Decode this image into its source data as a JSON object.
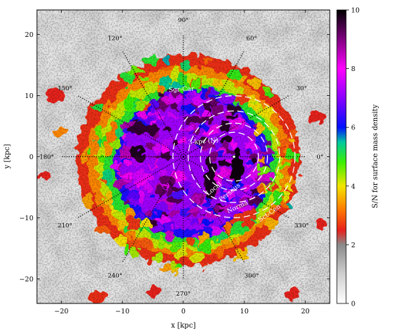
{
  "chart_data": {
    "type": "heatmap",
    "title": "",
    "xlabel": "x [kpc]",
    "ylabel": "y [kpc]",
    "xlim": [
      -24,
      24
    ],
    "ylim": [
      -24,
      24
    ],
    "xticks": [
      -20,
      -10,
      0,
      10,
      20
    ],
    "yticks": [
      -20,
      -10,
      0,
      10,
      20
    ],
    "colorbar": {
      "label": "S/N for surface mass density",
      "range": [
        0,
        10
      ],
      "ticks": [
        0,
        2,
        4,
        6,
        8,
        10
      ],
      "stops": [
        {
          "v": 0,
          "color": "#ffffff"
        },
        {
          "v": 1,
          "color": "#cfcfcf"
        },
        {
          "v": 2,
          "color": "#8a8a8a"
        },
        {
          "v": 2.5,
          "color": "#e8201c"
        },
        {
          "v": 3.2,
          "color": "#ff7a00"
        },
        {
          "v": 4,
          "color": "#f2e600"
        },
        {
          "v": 4.8,
          "color": "#3cf000"
        },
        {
          "v": 5.5,
          "color": "#00c8a0"
        },
        {
          "v": 6,
          "color": "#0010ff"
        },
        {
          "v": 7,
          "color": "#8a00ff"
        },
        {
          "v": 8,
          "color": "#ff00ff"
        },
        {
          "v": 9,
          "color": "#800080"
        },
        {
          "v": 10,
          "color": "#000000"
        }
      ]
    },
    "sun_position": [
      8.3,
      0
    ],
    "angle_lines": {
      "radius": 20,
      "angles": [
        0,
        30,
        60,
        90,
        120,
        150,
        180,
        210,
        240,
        270,
        300,
        330
      ],
      "labels": [
        "0°",
        "30°",
        "60°",
        "90°",
        "120°",
        "150°",
        "180°",
        "210°",
        "240°",
        "270°",
        "300°",
        "330°"
      ]
    },
    "circles_kpc": [
      4,
      5.5,
      7.5,
      10
    ],
    "annotations": [
      {
        "text": "Sgr-Car",
        "x": -0.3,
        "y": 10.7,
        "rotate": -3
      },
      {
        "text": "3-kpc (N)",
        "x": 3.3,
        "y": 2.2,
        "rotate": -5
      },
      {
        "text": "Local",
        "x": 5.2,
        "y": -5.5,
        "rotate": -38
      },
      {
        "text": "Perseus",
        "x": 7.8,
        "y": -6.1,
        "rotate": -40
      },
      {
        "text": "Norma",
        "x": 9.0,
        "y": -8.5,
        "rotate": -25
      },
      {
        "text": "Sct-Cen",
        "x": 14.3,
        "y": -9.5,
        "rotate": -35
      }
    ]
  }
}
